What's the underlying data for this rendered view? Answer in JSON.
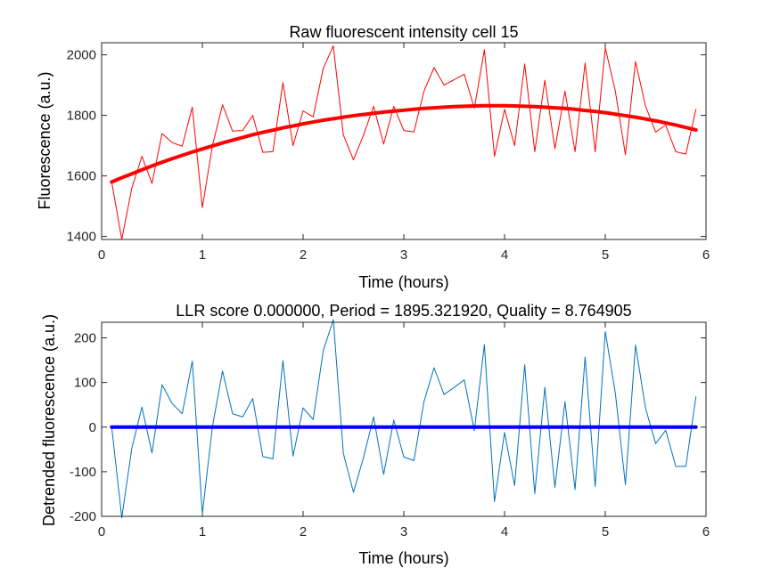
{
  "chart_data": [
    {
      "type": "line",
      "title": "Raw fluorescent intensity cell 15",
      "xlabel": "Time (hours)",
      "ylabel": "Fluorescence (a.u.)",
      "xlim": [
        0,
        6
      ],
      "ylim": [
        1390,
        2040
      ],
      "xticks": [
        0,
        1,
        2,
        3,
        4,
        5,
        6
      ],
      "yticks": [
        1400,
        1600,
        1800,
        2000
      ],
      "grid": false,
      "series": [
        {
          "color": "#ff0000",
          "style": "thin",
          "x": [
            0.1,
            0.2,
            0.3,
            0.4,
            0.5,
            0.6,
            0.7,
            0.8,
            0.9,
            1.0,
            1.1,
            1.2,
            1.3,
            1.4,
            1.5,
            1.6,
            1.7,
            1.8,
            1.9,
            2.0,
            2.1,
            2.2,
            2.3,
            2.4,
            2.5,
            2.6,
            2.7,
            2.8,
            2.9,
            3.0,
            3.1,
            3.2,
            3.3,
            3.4,
            3.5,
            3.6,
            3.7,
            3.8,
            3.9,
            4.0,
            4.1,
            4.2,
            4.3,
            4.4,
            4.5,
            4.6,
            4.7,
            4.8,
            4.9,
            5.0,
            5.1,
            5.2,
            5.3,
            5.4,
            5.5,
            5.6,
            5.7,
            5.8,
            5.9
          ],
          "y": [
            1580,
            1390,
            1560,
            1665,
            1575,
            1740,
            1710,
            1698,
            1827,
            1495,
            1700,
            1835,
            1748,
            1750,
            1800,
            1678,
            1680,
            1908,
            1700,
            1815,
            1795,
            1955,
            2030,
            1735,
            1653,
            1735,
            1830,
            1705,
            1830,
            1750,
            1745,
            1880,
            1958,
            1900,
            1918,
            1936,
            1823,
            2017,
            1665,
            1820,
            1700,
            1970,
            1680,
            1916,
            1690,
            1880,
            1680,
            1973,
            1680,
            2023,
            1880,
            1670,
            1978,
            1830,
            1745,
            1768,
            1680,
            1672,
            1820
          ]
        },
        {
          "color": "#ff0000",
          "style": "thick",
          "x": [
            0.1,
            0.2,
            0.3,
            0.4,
            0.5,
            0.6,
            0.7,
            0.8,
            0.9,
            1.0,
            1.1,
            1.2,
            1.3,
            1.4,
            1.5,
            1.6,
            1.7,
            1.8,
            1.9,
            2.0,
            2.1,
            2.2,
            2.3,
            2.4,
            2.5,
            2.6,
            2.7,
            2.8,
            2.9,
            3.0,
            3.1,
            3.2,
            3.3,
            3.4,
            3.5,
            3.6,
            3.7,
            3.8,
            3.9,
            4.0,
            4.1,
            4.2,
            4.3,
            4.4,
            4.5,
            4.6,
            4.7,
            4.8,
            4.9,
            5.0,
            5.1,
            5.2,
            5.3,
            5.4,
            5.5,
            5.6,
            5.7,
            5.8,
            5.9
          ],
          "y": [
            1580,
            1594,
            1607,
            1620,
            1633,
            1645,
            1657,
            1668,
            1679,
            1689,
            1699,
            1709,
            1718,
            1727,
            1736,
            1744,
            1751,
            1759,
            1765,
            1772,
            1778,
            1784,
            1789,
            1794,
            1799,
            1803,
            1807,
            1811,
            1814,
            1817,
            1820,
            1823,
            1825,
            1827,
            1829,
            1830,
            1831,
            1832,
            1832,
            1832,
            1831,
            1830,
            1829,
            1827,
            1825,
            1823,
            1820,
            1816,
            1813,
            1809,
            1804,
            1799,
            1794,
            1788,
            1782,
            1775,
            1768,
            1760,
            1752
          ]
        }
      ]
    },
    {
      "type": "line",
      "title": "LLR score 0.000000, Period = 1895.321920, Quality = 8.764905",
      "xlabel": "Time (hours)",
      "ylabel": "Detrended fluorescence (a.u.)",
      "xlim": [
        0,
        6
      ],
      "ylim": [
        -200,
        235
      ],
      "xticks": [
        0,
        1,
        2,
        3,
        4,
        5,
        6
      ],
      "yticks": [
        -200,
        -100,
        0,
        100,
        200
      ],
      "grid": false,
      "series": [
        {
          "color": "#0072bd",
          "style": "thin",
          "x": [
            0.1,
            0.2,
            0.3,
            0.4,
            0.5,
            0.6,
            0.7,
            0.8,
            0.9,
            1.0,
            1.1,
            1.2,
            1.3,
            1.4,
            1.5,
            1.6,
            1.7,
            1.8,
            1.9,
            2.0,
            2.1,
            2.2,
            2.3,
            2.4,
            2.5,
            2.6,
            2.7,
            2.8,
            2.9,
            3.0,
            3.1,
            3.2,
            3.3,
            3.4,
            3.5,
            3.6,
            3.7,
            3.8,
            3.9,
            4.0,
            4.1,
            4.2,
            4.3,
            4.4,
            4.5,
            4.6,
            4.7,
            4.8,
            4.9,
            5.0,
            5.1,
            5.2,
            5.3,
            5.4,
            5.5,
            5.6,
            5.7,
            5.8,
            5.9
          ],
          "y": [
            0,
            -203,
            -47,
            45,
            -58,
            95,
            53,
            30,
            148,
            -194,
            1,
            126,
            30,
            23,
            64,
            -66,
            -71,
            149,
            -65,
            43,
            17,
            171,
            241,
            -59,
            -146,
            -68,
            23,
            -106,
            16,
            -67,
            -75,
            57,
            133,
            73,
            89,
            106,
            -8,
            185,
            -167,
            -12,
            -131,
            140,
            -149,
            89,
            -135,
            57,
            -140,
            157,
            -133,
            214,
            76,
            -129,
            184,
            42,
            -37,
            -7,
            -88,
            -88,
            68
          ]
        },
        {
          "color": "#0000ff",
          "style": "thick",
          "x": [
            0.1,
            5.9
          ],
          "y": [
            0,
            0
          ]
        }
      ]
    }
  ]
}
